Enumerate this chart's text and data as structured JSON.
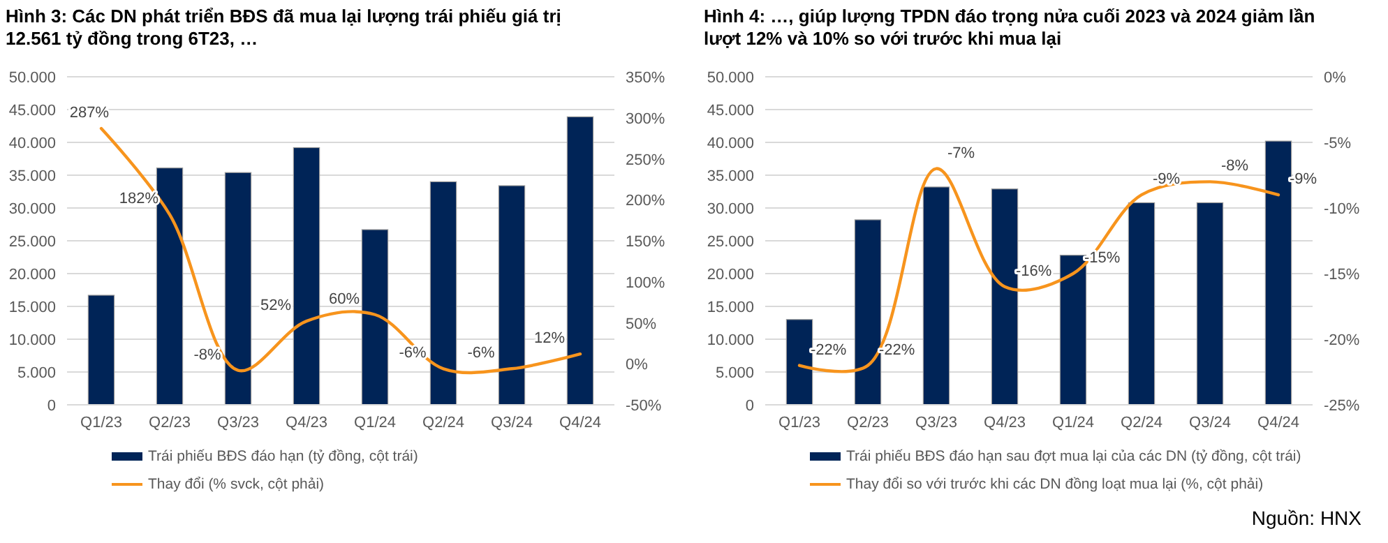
{
  "chart_data": [
    {
      "type": "bar",
      "title": "Hình 3: Các DN phát triển BĐS đã mua lại lượng trái phiếu giá trị 12.561 tỷ đồng trong 6T23, …",
      "categories": [
        "Q1/23",
        "Q2/23",
        "Q3/23",
        "Q4/23",
        "Q1/24",
        "Q2/24",
        "Q3/24",
        "Q4/24"
      ],
      "series": [
        {
          "name": "Trái phiếu BĐS đáo hạn (tỷ đồng, cột trái)",
          "color": "#002457",
          "values": [
            16700,
            36100,
            35400,
            39200,
            26700,
            34000,
            33400,
            43900
          ]
        },
        {
          "name": "Thay đổi (% svck, cột phải)",
          "type": "line",
          "axis": "y2",
          "color": "#f7941d",
          "values": [
            287,
            182,
            -8,
            52,
            60,
            -6,
            -6,
            12
          ],
          "value_labels": [
            "287%",
            "182%",
            "-8%",
            "52%",
            "60%",
            "-6%",
            "-6%",
            "12%"
          ]
        }
      ],
      "ylim": [
        0,
        50000
      ],
      "yticks": [
        {
          "value": 0,
          "label": "0"
        },
        {
          "value": 5000,
          "label": "5.000"
        },
        {
          "value": 10000,
          "label": "10.000"
        },
        {
          "value": 15000,
          "label": "15.000"
        },
        {
          "value": 20000,
          "label": "20.000"
        },
        {
          "value": 25000,
          "label": "25.000"
        },
        {
          "value": 30000,
          "label": "30.000"
        },
        {
          "value": 35000,
          "label": "35.000"
        },
        {
          "value": 40000,
          "label": "40.000"
        },
        {
          "value": 45000,
          "label": "45.000"
        },
        {
          "value": 50000,
          "label": "50.000"
        }
      ],
      "y2lim": [
        -50,
        350
      ],
      "y2ticks": [
        {
          "value": -50,
          "label": "-50%"
        },
        {
          "value": 0,
          "label": "0%"
        },
        {
          "value": 50,
          "label": "50%"
        },
        {
          "value": 100,
          "label": "100%"
        },
        {
          "value": 150,
          "label": "150%"
        },
        {
          "value": 200,
          "label": "200%"
        },
        {
          "value": 250,
          "label": "250%"
        },
        {
          "value": 300,
          "label": "300%"
        },
        {
          "value": 350,
          "label": "350%"
        }
      ],
      "grid": "y",
      "legend": "bottom",
      "marker": "none",
      "line_style": "solid"
    },
    {
      "type": "bar",
      "title": "Hình 4: …, giúp lượng TPDN đáo trọng nửa cuối 2023 và 2024 giảm lần lượt 12% và 10% so với trước khi mua lại",
      "categories": [
        "Q1/23",
        "Q2/23",
        "Q3/23",
        "Q4/23",
        "Q1/24",
        "Q2/24",
        "Q3/24",
        "Q4/24"
      ],
      "series": [
        {
          "name": "Trái phiếu BĐS đáo hạn sau đợt mua lại của các DN (tỷ đồng, cột trái)",
          "color": "#002457",
          "values": [
            13000,
            28200,
            33200,
            32900,
            22800,
            30800,
            30800,
            40200
          ]
        },
        {
          "name": "Thay đổi so với trước khi các DN đồng loạt mua lại (%, cột phải)",
          "type": "line",
          "axis": "y2",
          "color": "#f7941d",
          "values": [
            -22,
            -22,
            -7,
            -16,
            -15,
            -9,
            -8,
            -9
          ],
          "value_labels": [
            "-22%",
            "-22%",
            "-7%",
            "-16%",
            "-15%",
            "-9%",
            "-8%",
            "-9%"
          ]
        }
      ],
      "ylim": [
        0,
        50000
      ],
      "yticks": [
        {
          "value": 0,
          "label": "0"
        },
        {
          "value": 5000,
          "label": "5.000"
        },
        {
          "value": 10000,
          "label": "10.000"
        },
        {
          "value": 15000,
          "label": "15.000"
        },
        {
          "value": 20000,
          "label": "20.000"
        },
        {
          "value": 25000,
          "label": "25.000"
        },
        {
          "value": 30000,
          "label": "30.000"
        },
        {
          "value": 35000,
          "label": "35.000"
        },
        {
          "value": 40000,
          "label": "40.000"
        },
        {
          "value": 45000,
          "label": "45.000"
        },
        {
          "value": 50000,
          "label": "50.000"
        }
      ],
      "y2lim": [
        -25,
        0
      ],
      "y2ticks": [
        {
          "value": -25,
          "label": "-25%"
        },
        {
          "value": -20,
          "label": "-20%"
        },
        {
          "value": -15,
          "label": "-15%"
        },
        {
          "value": -10,
          "label": "-10%"
        },
        {
          "value": -5,
          "label": "-5%"
        },
        {
          "value": 0,
          "label": "0%"
        }
      ],
      "grid": "y",
      "legend": "bottom",
      "marker": "none",
      "line_style": "solid",
      "annotations": [
        "Nguồn: HNX"
      ]
    }
  ]
}
